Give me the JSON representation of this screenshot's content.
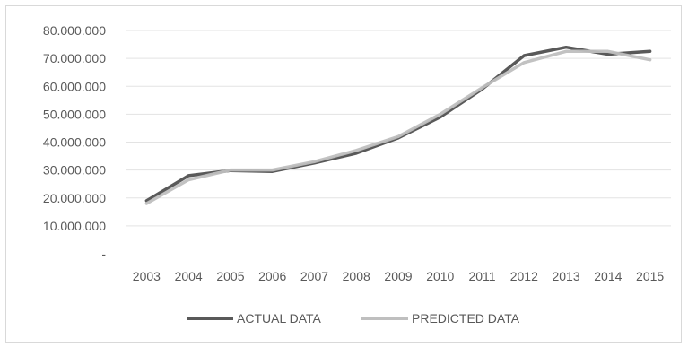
{
  "chart_data": {
    "type": "line",
    "title": "",
    "xlabel": "",
    "ylabel": "",
    "categories": [
      "2003",
      "2004",
      "2005",
      "2006",
      "2007",
      "2008",
      "2009",
      "2010",
      "2011",
      "2012",
      "2013",
      "2014",
      "2015"
    ],
    "series": [
      {
        "name": "ACTUAL DATA",
        "color": "#595959",
        "values": [
          19000000,
          28000000,
          29800000,
          29500000,
          32500000,
          36000000,
          41500000,
          49000000,
          59000000,
          71000000,
          74000000,
          71500000,
          72500000
        ]
      },
      {
        "name": "PREDICTED DATA",
        "color": "#bfbfbf",
        "values": [
          18000000,
          26500000,
          30000000,
          30000000,
          33000000,
          37000000,
          42000000,
          50000000,
          59500000,
          68500000,
          72500000,
          72500000,
          69500000
        ]
      }
    ],
    "ylim": [
      0,
      80000000
    ],
    "yticks": [
      "-",
      "10.000.000",
      "20.000.000",
      "30.000.000",
      "40.000.000",
      "50.000.000",
      "60.000.000",
      "70.000.000",
      "80.000.000"
    ],
    "grid": true,
    "legend_position": "bottom"
  }
}
